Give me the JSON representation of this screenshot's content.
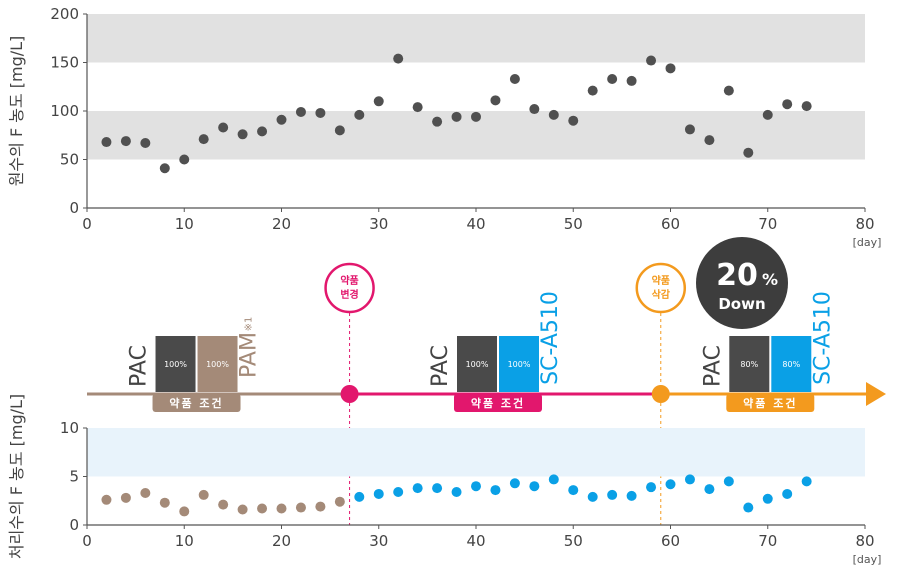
{
  "chart_data": [
    {
      "type": "scatter",
      "title": "",
      "xlabel": "",
      "ylabel": "원수의 F 농도 [mg/L]",
      "xlim": [
        0,
        80
      ],
      "ylim": [
        0,
        200
      ],
      "xticks": [
        "0",
        "10",
        "20",
        "30",
        "40",
        "50",
        "60",
        "70",
        "80"
      ],
      "yticks": [
        "0",
        "50",
        "100",
        "150",
        "200"
      ],
      "x_unit": "[day]",
      "bands": [
        [
          50,
          100
        ],
        [
          150,
          200
        ]
      ],
      "band_color": "#e1e1e1",
      "point_color": "#505050",
      "points": [
        [
          2,
          68
        ],
        [
          4,
          69
        ],
        [
          6,
          67
        ],
        [
          8,
          41
        ],
        [
          10,
          50
        ],
        [
          12,
          71
        ],
        [
          14,
          83
        ],
        [
          16,
          76
        ],
        [
          18,
          79
        ],
        [
          20,
          91
        ],
        [
          22,
          99
        ],
        [
          24,
          98
        ],
        [
          26,
          80
        ],
        [
          28,
          96
        ],
        [
          30,
          110
        ],
        [
          32,
          154
        ],
        [
          34,
          104
        ],
        [
          36,
          89
        ],
        [
          38,
          94
        ],
        [
          40,
          94
        ],
        [
          42,
          111
        ],
        [
          44,
          133
        ],
        [
          46,
          102
        ],
        [
          48,
          96
        ],
        [
          50,
          90
        ],
        [
          52,
          121
        ],
        [
          54,
          133
        ],
        [
          56,
          131
        ],
        [
          58,
          152
        ],
        [
          60,
          144
        ],
        [
          62,
          81
        ],
        [
          64,
          70
        ],
        [
          66,
          121
        ],
        [
          68,
          57
        ],
        [
          70,
          96
        ],
        [
          72,
          107
        ],
        [
          74,
          105
        ]
      ]
    },
    {
      "type": "scatter",
      "title": "",
      "xlabel": "",
      "ylabel": "처리수의 F 농도 [mg/L]",
      "xlim": [
        0,
        80
      ],
      "ylim": [
        0,
        10
      ],
      "xticks": [
        "0",
        "10",
        "20",
        "30",
        "40",
        "50",
        "60",
        "70",
        "80"
      ],
      "yticks": [
        "0",
        "5",
        "10"
      ],
      "x_unit": "[day]",
      "bands": [
        [
          5,
          10
        ]
      ],
      "band_color": "#e8f3fb",
      "series": [
        {
          "color": "#a48a78",
          "points": [
            [
              2,
              2.6
            ],
            [
              4,
              2.8
            ],
            [
              6,
              3.3
            ],
            [
              8,
              2.3
            ],
            [
              10,
              1.4
            ],
            [
              12,
              3.1
            ],
            [
              14,
              2.1
            ],
            [
              16,
              1.6
            ],
            [
              18,
              1.7
            ],
            [
              20,
              1.7
            ],
            [
              22,
              1.8
            ],
            [
              24,
              1.9
            ],
            [
              26,
              2.4
            ]
          ]
        },
        {
          "color": "#0aa0e6",
          "points": [
            [
              28,
              2.9
            ],
            [
              30,
              3.2
            ],
            [
              32,
              3.4
            ],
            [
              34,
              3.8
            ],
            [
              36,
              3.8
            ],
            [
              38,
              3.4
            ],
            [
              40,
              4.0
            ],
            [
              42,
              3.6
            ],
            [
              44,
              4.3
            ],
            [
              46,
              4.0
            ],
            [
              48,
              4.7
            ],
            [
              50,
              3.6
            ],
            [
              52,
              2.9
            ],
            [
              54,
              3.1
            ],
            [
              56,
              3.0
            ],
            [
              58,
              3.9
            ],
            [
              60,
              4.2
            ],
            [
              62,
              4.7
            ],
            [
              64,
              3.7
            ],
            [
              66,
              4.5
            ],
            [
              68,
              1.8
            ],
            [
              70,
              2.7
            ],
            [
              72,
              3.2
            ],
            [
              74,
              4.5
            ]
          ]
        }
      ]
    }
  ],
  "timeline": {
    "segments": [
      {
        "from": 0,
        "to": 27,
        "color": "#a48a78"
      },
      {
        "from": 27,
        "to": 59,
        "color": "#e2176d"
      },
      {
        "from": 59,
        "to": 80,
        "color": "#f39a1e"
      }
    ],
    "arrow_color": "#f39a1e",
    "events": [
      {
        "day": 27,
        "color": "#e2176d",
        "line1": "약품",
        "line2": "변경"
      },
      {
        "day": 59,
        "color": "#f39a1e",
        "line1": "약품",
        "line2": "삭감"
      }
    ],
    "reduction_badge": {
      "value": "20",
      "unit": "%",
      "label": "Down",
      "color": "#3d3d3d"
    },
    "conditions": [
      {
        "center_day": 9,
        "pac": "PAC",
        "box1": "100%",
        "box2": "100%",
        "box1_color": "#4a4a4a",
        "box2_color": "#a48a78",
        "chemical": "PAM",
        "chemical_note": "※1",
        "chemical_color": "#a48a78",
        "label": "약품 조건",
        "label_color": "#a48a78"
      },
      {
        "center_day": 40,
        "pac": "PAC",
        "box1": "100%",
        "box2": "100%",
        "box1_color": "#4a4a4a",
        "box2_color": "#0aa0e6",
        "chemical": "SC-A510",
        "chemical_note": "",
        "chemical_color": "#0aa0e6",
        "label": "약품 조건",
        "label_color": "#e2176d"
      },
      {
        "center_day": 68,
        "pac": "PAC",
        "box1": "80%",
        "box2": "80%",
        "box1_color": "#4a4a4a",
        "box2_color": "#0aa0e6",
        "chemical": "SC-A510",
        "chemical_note": "",
        "chemical_color": "#0aa0e6",
        "label": "약품 조건",
        "label_color": "#f39a1e"
      }
    ]
  }
}
